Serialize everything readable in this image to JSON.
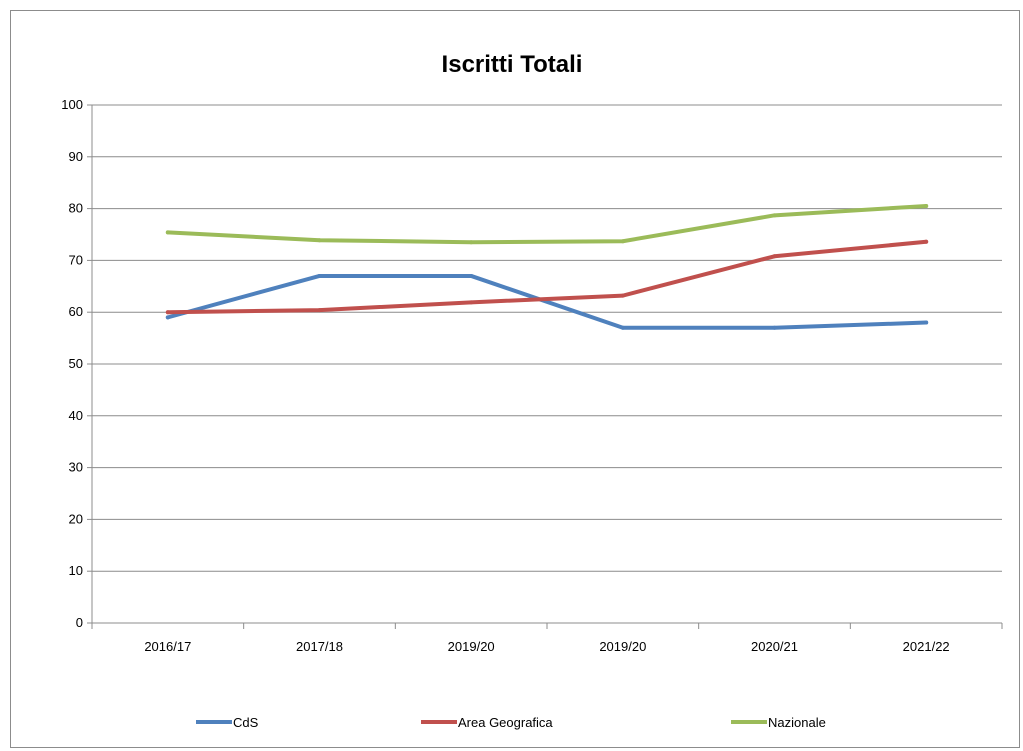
{
  "chart_data": {
    "type": "line",
    "title": "Iscritti Totali",
    "xlabel": "",
    "ylabel": "",
    "categories": [
      "2016/17",
      "2017/18",
      "2019/20",
      "2019/20",
      "2020/21",
      "2021/22"
    ],
    "ylim": [
      0,
      100
    ],
    "yticks": [
      0,
      10,
      20,
      30,
      40,
      50,
      60,
      70,
      80,
      90,
      100
    ],
    "grid": true,
    "legend_position": "bottom",
    "series": [
      {
        "name": "CdS",
        "color": "#4f81bd",
        "values": [
          59,
          67,
          67,
          57,
          57,
          58
        ]
      },
      {
        "name": "Area Geografica",
        "color": "#c0504d",
        "values": [
          60,
          60.4,
          61.9,
          63.2,
          70.8,
          73.6
        ]
      },
      {
        "name": "Nazionale",
        "color": "#9bbb59",
        "values": [
          75.4,
          73.9,
          73.5,
          73.7,
          78.7,
          80.5
        ]
      }
    ]
  }
}
